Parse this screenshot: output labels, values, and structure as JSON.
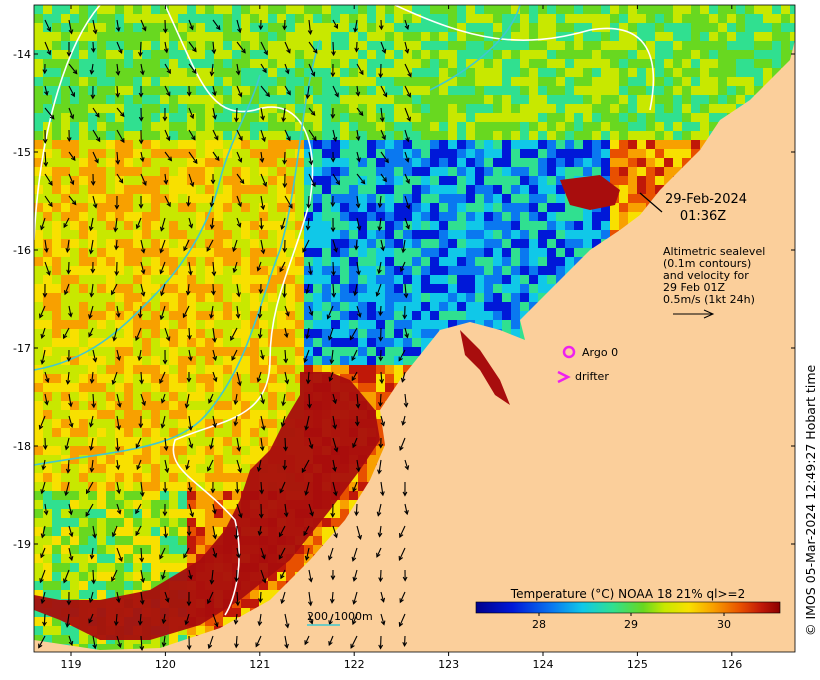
{
  "map": {
    "date": "29-Feb-2024",
    "time": "01:36Z",
    "altimetry_lines": [
      "Altimetric sealevel",
      "(0.1m contours)",
      "and velocity for",
      "29 Feb 01Z",
      "0.5m/s (1kt 24h)"
    ],
    "legend": {
      "argo": "Argo 0",
      "drifter": "drifter"
    },
    "colorbar": {
      "title": "Temperature (°C) NOAA 18 21% ql>=2",
      "ticks": [
        "28",
        "29",
        "30"
      ]
    },
    "depth_scale": {
      "shallow": "200",
      "deep": "1000m"
    },
    "credit": "© IMOS 05-Mar-2024 12:49:27 Hobart time",
    "x_ticks": [
      "119",
      "120",
      "121",
      "122",
      "123",
      "124",
      "125",
      "126"
    ],
    "y_ticks": [
      "-14",
      "-15",
      "-16",
      "-17",
      "-18",
      "-19"
    ],
    "colors": {
      "land": "#fbcf9b",
      "sst_hot": "#a80d0d",
      "contour": "#40c8d0",
      "argo": "#ee22ee"
    },
    "icons": [
      "argo-float-icon",
      "drifter-icon",
      "velocity-arrow-icon"
    ]
  }
}
